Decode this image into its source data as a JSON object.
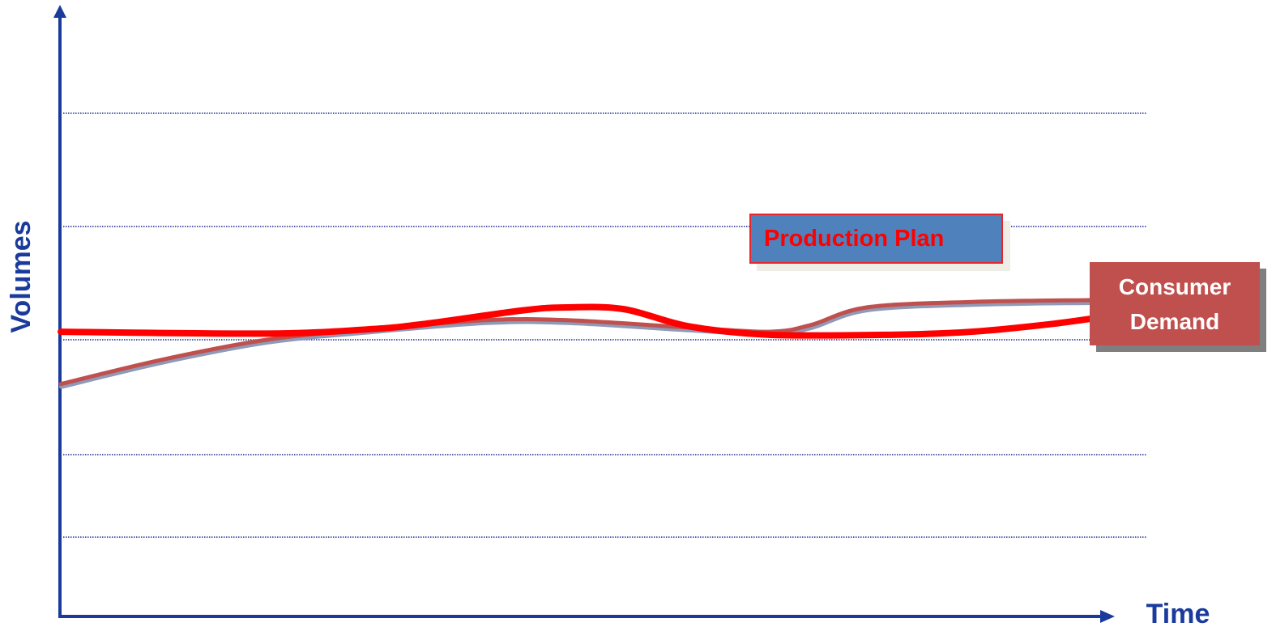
{
  "chart_data": {
    "type": "line",
    "x_label": "Time",
    "y_label": "Volumes",
    "xlim": [
      0,
      100
    ],
    "ylim": [
      0,
      100
    ],
    "series": [
      {
        "name": "Production Plan",
        "color": "#ff0000",
        "x": [
          0,
          19.6,
          29.2,
          34.6,
          43.8,
          48.1,
          53.5,
          59.6,
          67.3,
          78.8,
          86.5,
          94.2,
          100
        ],
        "values": [
          46.8,
          46.5,
          47.2,
          48.1,
          50.3,
          50.8,
          50.5,
          47.7,
          46.3,
          46.3,
          46.8,
          48.1,
          49.5
        ]
      },
      {
        "name": "Consumer Demand",
        "color": "#c0504d",
        "x": [
          0,
          9.6,
          19.6,
          28.8,
          40.4,
          48.1,
          59.6,
          67.3,
          71.2,
          76.5,
          86.5,
          97.7
        ],
        "values": [
          38.2,
          42.2,
          45.5,
          47.1,
          48.7,
          48.7,
          47.5,
          46.8,
          47.9,
          50.8,
          51.7,
          52.0
        ]
      }
    ]
  }
}
